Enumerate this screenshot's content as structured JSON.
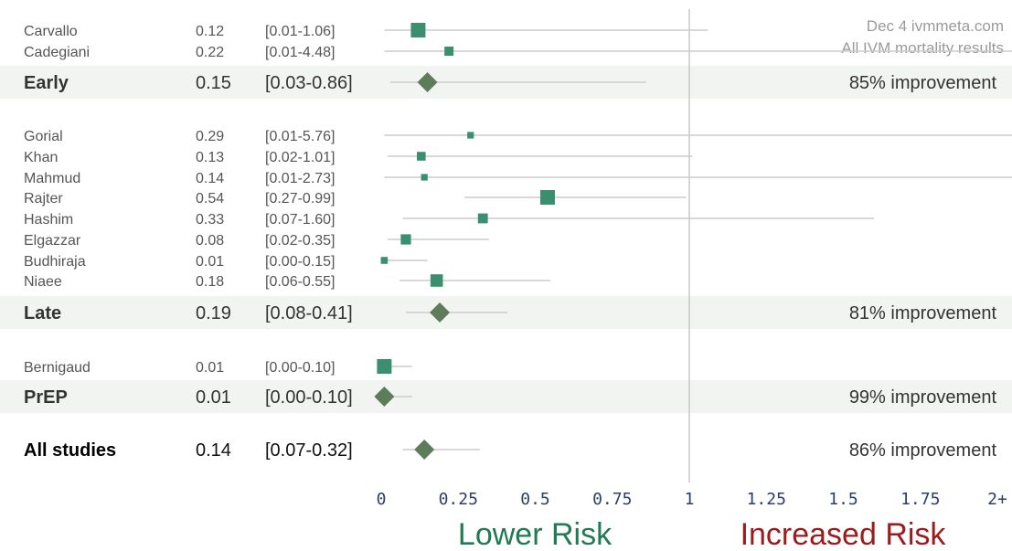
{
  "header": {
    "line1": "Dec 4 ivmmeta.com",
    "line2": "All IVM mortality results"
  },
  "colors": {
    "study_marker": "#3a8f6e",
    "summary_marker": "#5d7d5a",
    "ci_line": "#cccccc",
    "band": "#f2f4f1",
    "ref_line": "#c8c8c8",
    "lower_risk": "#1f7a55",
    "increased_risk": "#9b1c1c",
    "tick": "#2a3f6a"
  },
  "risk_labels": {
    "lower": "Lower Risk",
    "increased": "Increased Risk"
  },
  "chart_data": {
    "type": "forest",
    "xlim": [
      0,
      2
    ],
    "reference": 1,
    "x_ticks": [
      "0",
      "0.25",
      "0.5",
      "0.75",
      "1",
      "1.25",
      "1.5",
      "1.75",
      "2+"
    ],
    "x_tick_values": [
      0,
      0.25,
      0.5,
      0.75,
      1,
      1.25,
      1.5,
      1.75,
      2
    ],
    "groups": [
      {
        "name": "Early",
        "studies": [
          {
            "name": "Carvallo",
            "est": 0.12,
            "lo": 0.01,
            "hi": 1.06,
            "label": "0.12",
            "ci": "[0.01-1.06]",
            "weight": 3
          },
          {
            "name": "Cadegiani",
            "est": 0.22,
            "lo": 0.01,
            "hi": 4.48,
            "label": "0.22",
            "ci": "[0.01-4.48]",
            "weight": 1.5
          }
        ],
        "summary": {
          "est": 0.15,
          "lo": 0.03,
          "hi": 0.86,
          "label": "0.15",
          "ci": "[0.03-0.86]",
          "improvement": "85% improvement"
        }
      },
      {
        "name": "Late",
        "studies": [
          {
            "name": "Gorial",
            "est": 0.29,
            "lo": 0.01,
            "hi": 5.76,
            "label": "0.29",
            "ci": "[0.01-5.76]",
            "weight": 0.8
          },
          {
            "name": "Khan",
            "est": 0.13,
            "lo": 0.02,
            "hi": 1.01,
            "label": "0.13",
            "ci": "[0.02-1.01]",
            "weight": 1.4
          },
          {
            "name": "Mahmud",
            "est": 0.14,
            "lo": 0.01,
            "hi": 2.73,
            "label": "0.14",
            "ci": "[0.01-2.73]",
            "weight": 0.8
          },
          {
            "name": "Rajter",
            "est": 0.54,
            "lo": 0.27,
            "hi": 0.99,
            "label": "0.54",
            "ci": "[0.27-0.99]",
            "weight": 3
          },
          {
            "name": "Hashim",
            "est": 0.33,
            "lo": 0.07,
            "hi": 1.6,
            "label": "0.33",
            "ci": "[0.07-1.60]",
            "weight": 1.7
          },
          {
            "name": "Elgazzar",
            "est": 0.08,
            "lo": 0.02,
            "hi": 0.35,
            "label": "0.08",
            "ci": "[0.02-0.35]",
            "weight": 1.8
          },
          {
            "name": "Budhiraja",
            "est": 0.01,
            "lo": 0.0,
            "hi": 0.15,
            "label": "0.01",
            "ci": "[0.00-0.15]",
            "weight": 0.9
          },
          {
            "name": "Niaee",
            "est": 0.18,
            "lo": 0.06,
            "hi": 0.55,
            "label": "0.18",
            "ci": "[0.06-0.55]",
            "weight": 2.4
          }
        ],
        "summary": {
          "est": 0.19,
          "lo": 0.08,
          "hi": 0.41,
          "label": "0.19",
          "ci": "[0.08-0.41]",
          "improvement": "81% improvement"
        }
      },
      {
        "name": "PrEP",
        "studies": [
          {
            "name": "Bernigaud",
            "est": 0.01,
            "lo": 0.0,
            "hi": 0.1,
            "label": "0.01",
            "ci": "[0.00-0.10]",
            "weight": 3
          }
        ],
        "summary": {
          "est": 0.01,
          "lo": 0.0,
          "hi": 0.1,
          "label": "0.01",
          "ci": "[0.00-0.10]",
          "improvement": "99% improvement"
        }
      }
    ],
    "overall": {
      "name": "All studies",
      "est": 0.14,
      "lo": 0.07,
      "hi": 0.32,
      "label": "0.14",
      "ci": "[0.07-0.32]",
      "improvement": "86% improvement"
    }
  }
}
